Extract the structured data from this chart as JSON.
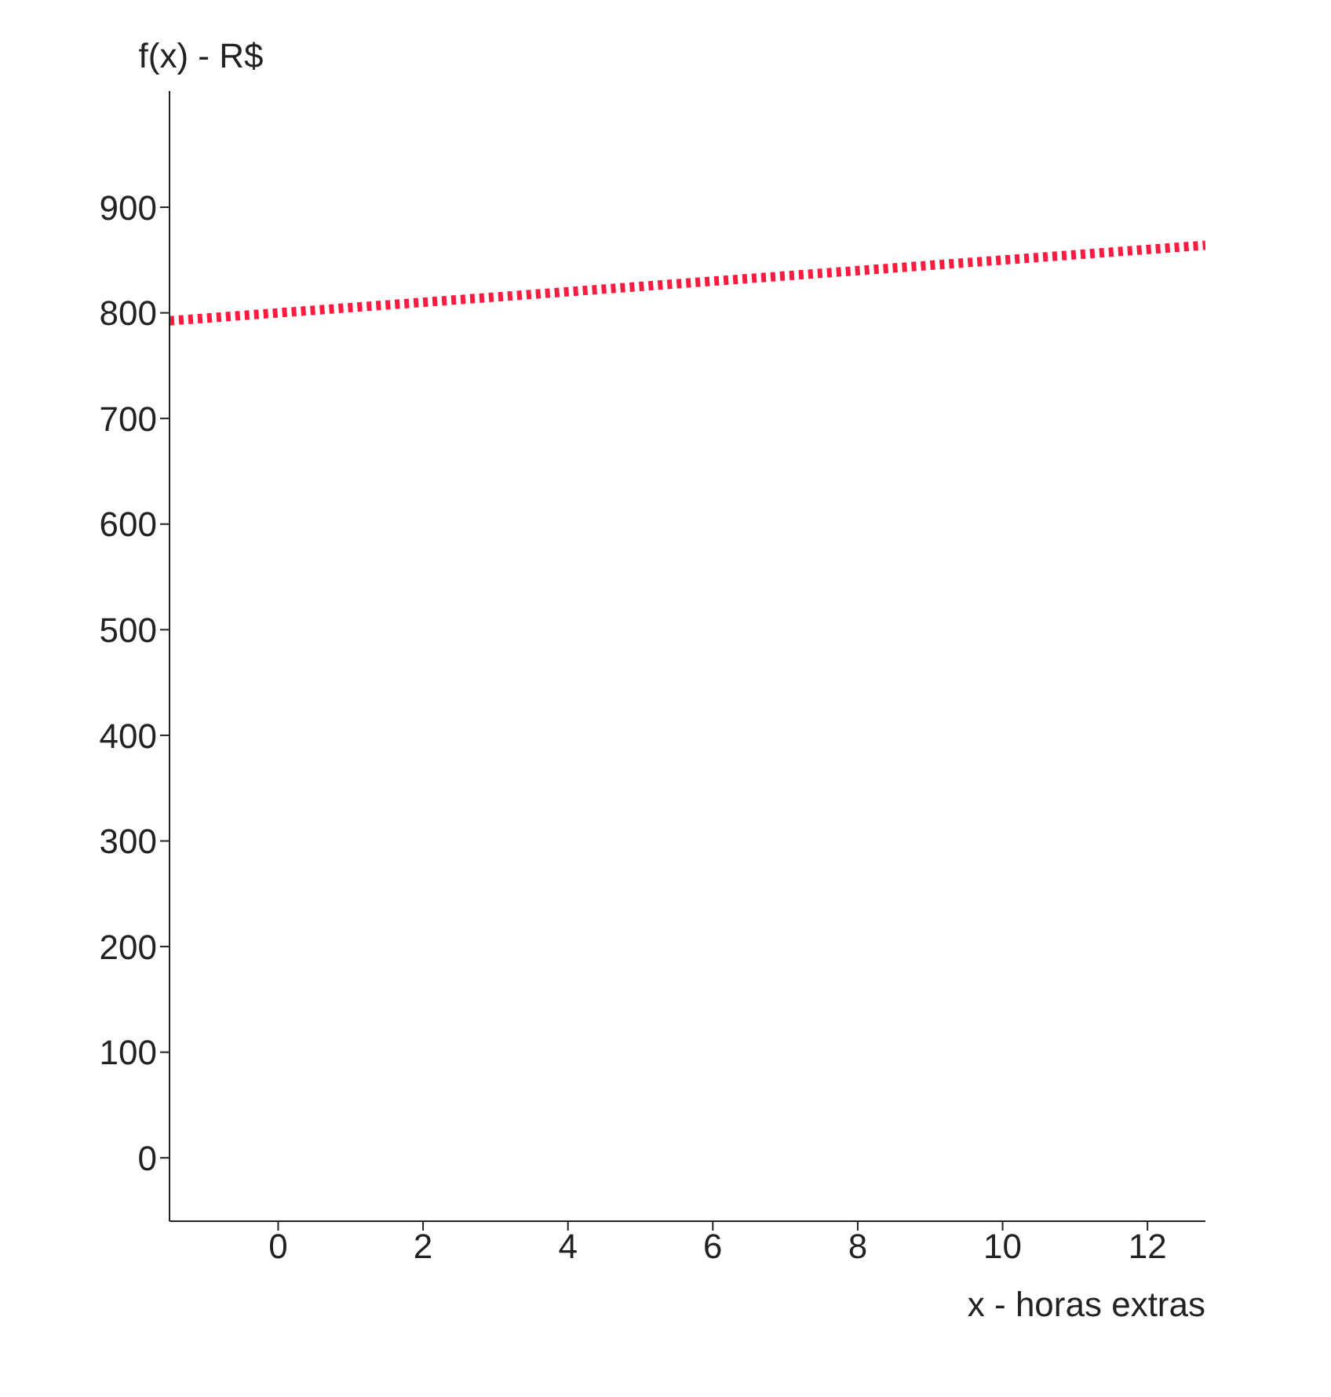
{
  "chart_data": {
    "type": "line",
    "xlabel": "x - horas extras",
    "ylabel": "f(x) - R$",
    "x": [
      -1.5,
      0,
      12.8
    ],
    "series": [
      {
        "color": "#ff1a40",
        "values": [
          792.5,
          800,
          864
        ]
      }
    ],
    "xlim": [
      -1.5,
      12.8
    ],
    "xticks": [
      0,
      2,
      4,
      6,
      8,
      10,
      12
    ],
    "ylim": [
      -60,
      1010
    ],
    "yticks": [
      0,
      100,
      200,
      300,
      400,
      500,
      600,
      700,
      800,
      900
    ],
    "grid": false,
    "legend": false,
    "marker": "none",
    "line_style": "dotted"
  }
}
